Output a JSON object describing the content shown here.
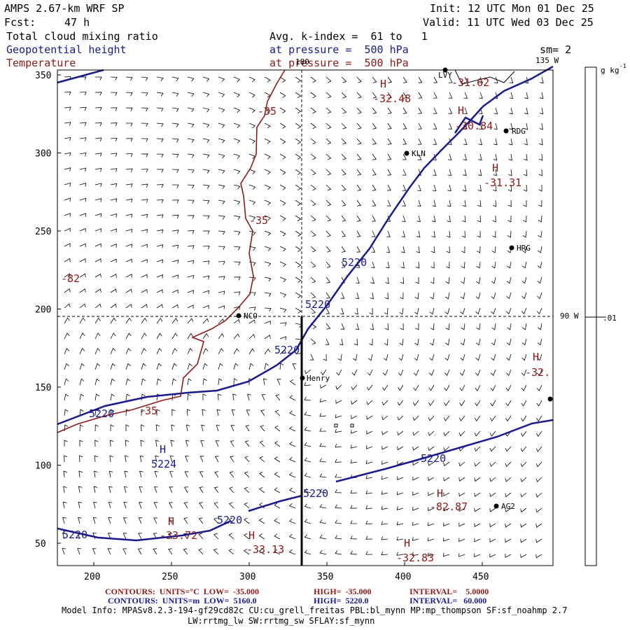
{
  "header": {
    "model": "AMPS 2.67-km WRF SP",
    "fcst_label": "Fcst:",
    "fcst_value": "47 h",
    "init": "Init: 12 UTC Mon 01 Dec 25",
    "valid": "Valid: 11 UTC Wed 03 Dec 25"
  },
  "fields": {
    "f1": "Total cloud mixing ratio",
    "f2": "Geopotential height",
    "f3": "Temperature",
    "avg": "Avg. k-index =  61 to   1",
    "p1": "at pressure =  500 hPa",
    "p2": "at pressure =  500 hPa",
    "sm": "sm= 2"
  },
  "colorbar": {
    "unit_label": "g kg",
    "unit_exp": "-1",
    "value": ".01"
  },
  "map": {
    "lon_labels": {
      "top": "180",
      "lon135": "135 W",
      "lon90": "90 W"
    },
    "stations": [
      {
        "name": "LVY"
      },
      {
        "name": "RDG"
      },
      {
        "name": "KLN"
      },
      {
        "name": "HRG"
      },
      {
        "name": "NCO"
      },
      {
        "name": "Henry"
      },
      {
        "name": "AG2"
      },
      {
        "name": ""
      }
    ],
    "temp_labels": [
      "-35",
      "-35",
      "-35",
      "-82",
      "-31.62",
      "-32.48",
      "-30.84",
      "-31.31",
      "-32.",
      "-82.87",
      "-33.13",
      "-32.83",
      "-33.72"
    ],
    "height_labels": [
      "5220",
      "5220",
      "5220",
      "5220",
      "5220",
      "5220",
      "5220",
      "5220",
      "5224"
    ],
    "h_marker": "H",
    "x_ticks": [
      "200",
      "250",
      "300",
      "350",
      "400",
      "450"
    ],
    "y_ticks": [
      "350",
      "300",
      "250",
      "200",
      "150",
      "100",
      "50"
    ],
    "colors": {
      "temperature": "#8b1a1a",
      "height": "#1a1a8c",
      "barb": "#000000"
    }
  },
  "footer": {
    "l1a": "CONTOURS:  UNITS=°C  LOW=  -35.000",
    "l1b": "HIGH=  -35.000",
    "l1c": "INTERVAL=    5.0000",
    "l2a": "CONTOURS:  UNITS=m  LOW=  5160.0",
    "l2b": "HIGH=  5220.0",
    "l2c": "INTERVAL=   60.000",
    "l3": "Model Info: MPASv8.2.3-194-gf29cd82c CU:cu_grell_freitas PBL:bl_mynn MP:mp_thompson SF:sf_noahmp 2.7",
    "l4": "LW:rrtmg_lw SW:rrtmg_sw SFLAY:sf_mynn"
  }
}
